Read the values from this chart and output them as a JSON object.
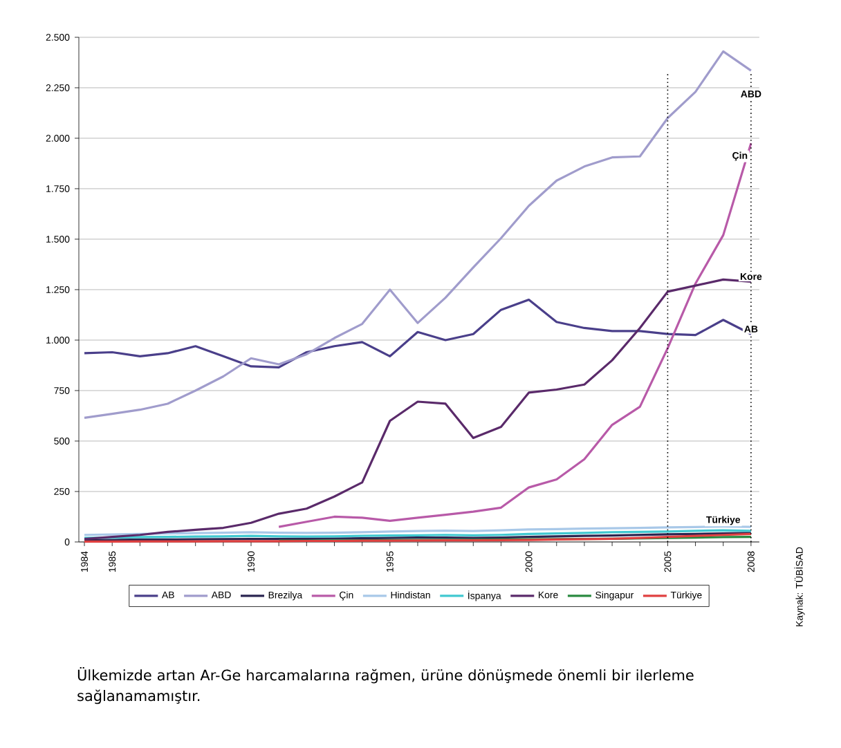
{
  "chart_data": {
    "type": "line",
    "x": [
      1984,
      1985,
      1986,
      1987,
      1988,
      1989,
      1990,
      1991,
      1992,
      1993,
      1994,
      1995,
      1996,
      1997,
      1998,
      1999,
      2000,
      2001,
      2002,
      2003,
      2004,
      2005,
      2006,
      2007,
      2008
    ],
    "series": [
      {
        "name": "AB",
        "color": "#4a3f8a",
        "values": [
          935,
          940,
          920,
          935,
          970,
          920,
          870,
          865,
          940,
          970,
          990,
          920,
          1040,
          1000,
          1030,
          1150,
          1200,
          1090,
          1060,
          1045,
          1045,
          1030,
          1025,
          1100,
          1030
        ]
      },
      {
        "name": "ABD",
        "color": "#a09ccc",
        "values": [
          615,
          635,
          655,
          685,
          750,
          820,
          910,
          880,
          930,
          1010,
          1080,
          1250,
          1085,
          1210,
          1360,
          1505,
          1665,
          1790,
          1860,
          1905,
          1910,
          2100,
          2230,
          2430,
          2335
        ]
      },
      {
        "name": "Brezilya",
        "color": "#2a2550",
        "values": [
          10,
          10,
          12,
          12,
          13,
          14,
          15,
          15,
          16,
          17,
          18,
          20,
          22,
          22,
          20,
          22,
          25,
          28,
          30,
          32,
          35,
          38,
          40,
          42,
          45
        ]
      },
      {
        "name": "Çin",
        "color": "#b85aa8",
        "values": [
          null,
          null,
          null,
          null,
          null,
          null,
          null,
          75,
          100,
          125,
          120,
          105,
          120,
          135,
          150,
          170,
          270,
          310,
          410,
          580,
          670,
          960,
          1280,
          1520,
          1975
        ]
      },
      {
        "name": "Hindistan",
        "color": "#a8c8e8",
        "values": [
          35,
          37,
          40,
          42,
          44,
          46,
          48,
          46,
          45,
          46,
          48,
          52,
          54,
          56,
          54,
          58,
          62,
          64,
          66,
          68,
          70,
          72,
          74,
          76,
          75
        ]
      },
      {
        "name": "İspanya",
        "color": "#40c8d0",
        "values": [
          20,
          22,
          24,
          25,
          27,
          28,
          30,
          28,
          27,
          28,
          30,
          32,
          33,
          35,
          33,
          35,
          40,
          42,
          45,
          48,
          50,
          52,
          55,
          58,
          55
        ]
      },
      {
        "name": "Kore",
        "color": "#5a2a6a",
        "values": [
          15,
          25,
          35,
          50,
          60,
          70,
          95,
          140,
          165,
          225,
          295,
          600,
          695,
          685,
          515,
          570,
          740,
          755,
          780,
          900,
          1060,
          1240,
          1270,
          1300,
          1290
        ]
      },
      {
        "name": "Singapur",
        "color": "#2a8a40",
        "values": [
          null,
          null,
          null,
          null,
          null,
          null,
          null,
          6,
          6,
          7,
          8,
          9,
          10,
          11,
          11,
          12,
          13,
          14,
          15,
          16,
          18,
          20,
          22,
          24,
          25
        ]
      },
      {
        "name": "Türkiye",
        "color": "#e04040",
        "values": [
          2,
          2,
          3,
          3,
          3,
          4,
          4,
          4,
          5,
          5,
          6,
          6,
          7,
          8,
          8,
          9,
          10,
          12,
          14,
          16,
          20,
          25,
          30,
          35,
          40
        ]
      }
    ],
    "xlim": [
      1983.8,
      2008.3
    ],
    "xticks": [
      1984,
      1985,
      {
        "value": 1986,
        "label": null
      },
      {
        "value": 1987,
        "label": null
      },
      {
        "value": 1988,
        "label": null
      },
      {
        "value": 1989,
        "label": null
      },
      1990,
      {
        "value": 1991,
        "label": null
      },
      {
        "value": 1992,
        "label": null
      },
      {
        "value": 1993,
        "label": null
      },
      {
        "value": 1994,
        "label": null
      },
      1995,
      {
        "value": 1996,
        "label": null
      },
      {
        "value": 1997,
        "label": null
      },
      {
        "value": 1998,
        "label": null
      },
      {
        "value": 1999,
        "label": null
      },
      2000,
      {
        "value": 2001,
        "label": null
      },
      {
        "value": 2002,
        "label": null
      },
      {
        "value": 2003,
        "label": null
      },
      {
        "value": 2004,
        "label": null
      },
      2005,
      {
        "value": 2006,
        "label": null
      },
      {
        "value": 2007,
        "label": null
      },
      2008
    ],
    "ylim": [
      0,
      2500
    ],
    "yticks": [
      0,
      250,
      500,
      750,
      {
        "value": 1000,
        "label": "1.000"
      },
      {
        "value": 1250,
        "label": "1.250"
      },
      {
        "value": 1500,
        "label": "1.500"
      },
      {
        "value": 1750,
        "label": "1.750"
      },
      {
        "value": 2000,
        "label": "2.000"
      },
      {
        "value": 2250,
        "label": "2.250"
      },
      {
        "value": 2500,
        "label": "2.500"
      }
    ],
    "grid": "y",
    "legend": "bottom",
    "marker": "none",
    "line_style": "solid",
    "ref_lines": [
      {
        "axis": "x",
        "value": 2005,
        "line_style": "dotted"
      },
      {
        "axis": "x",
        "value": 2008,
        "line_style": "dotted"
      }
    ],
    "annotations": [
      {
        "text": "ABD",
        "x": 2008,
        "y": 2195
      },
      {
        "text": "Çin",
        "x": 2007.6,
        "y": 1880
      },
      {
        "text": "Kore",
        "x": 2008,
        "y": 1290
      },
      {
        "text": "AB",
        "x": 2008,
        "y": 1030
      },
      {
        "text": "Türkiye",
        "x": 2007,
        "y": 76
      },
      "Kaynak: TÜBİSAD",
      "Ülkemizde artan Ar-Ge harcamalarına rağmen, ürüne dönüşmede önemli bir ilerleme sağlanamamıştır."
    ]
  }
}
